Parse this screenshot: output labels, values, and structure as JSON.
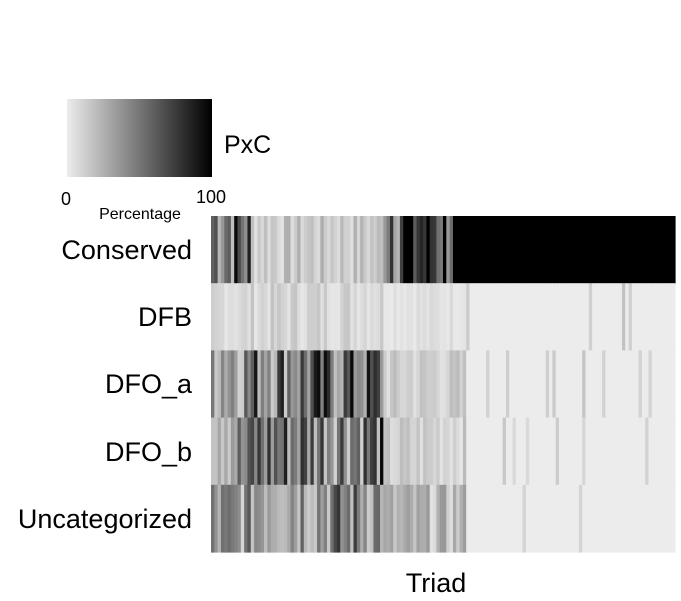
{
  "chart_data": {
    "type": "heatmap",
    "title": "PxC",
    "xlabel": "Triad",
    "ylabel": "",
    "rows": [
      "Conserved",
      "DFB",
      "DFO_a",
      "DFO_b",
      "Uncategorized"
    ],
    "colorbar": {
      "label": "Percentage",
      "min_label": "0",
      "max_label": "100",
      "min": 0,
      "max": 100,
      "low_color": "#ececec",
      "high_color": "#000000"
    },
    "column_count": 140,
    "segments": [
      {
        "fraction": [
          0.0,
          0.085
        ],
        "Conserved": 60,
        "DFB": 8,
        "DFO_a": 45,
        "DFO_b": 40,
        "Uncategorized": 35
      },
      {
        "fraction": [
          0.085,
          0.37
        ],
        "Conserved": 15,
        "DFB": 10,
        "DFO_a": 55,
        "DFO_b": 55,
        "Uncategorized": 45
      },
      {
        "fraction": [
          0.37,
          0.55
        ],
        "Conserved": 85,
        "DFB": 5,
        "DFO_a": 12,
        "DFO_b": 12,
        "Uncategorized": 20
      },
      {
        "fraction": [
          0.55,
          1.0
        ],
        "Conserved": 100,
        "DFB": 0,
        "DFO_a": 0,
        "DFO_b": 0,
        "Uncategorized": 0
      }
    ]
  }
}
